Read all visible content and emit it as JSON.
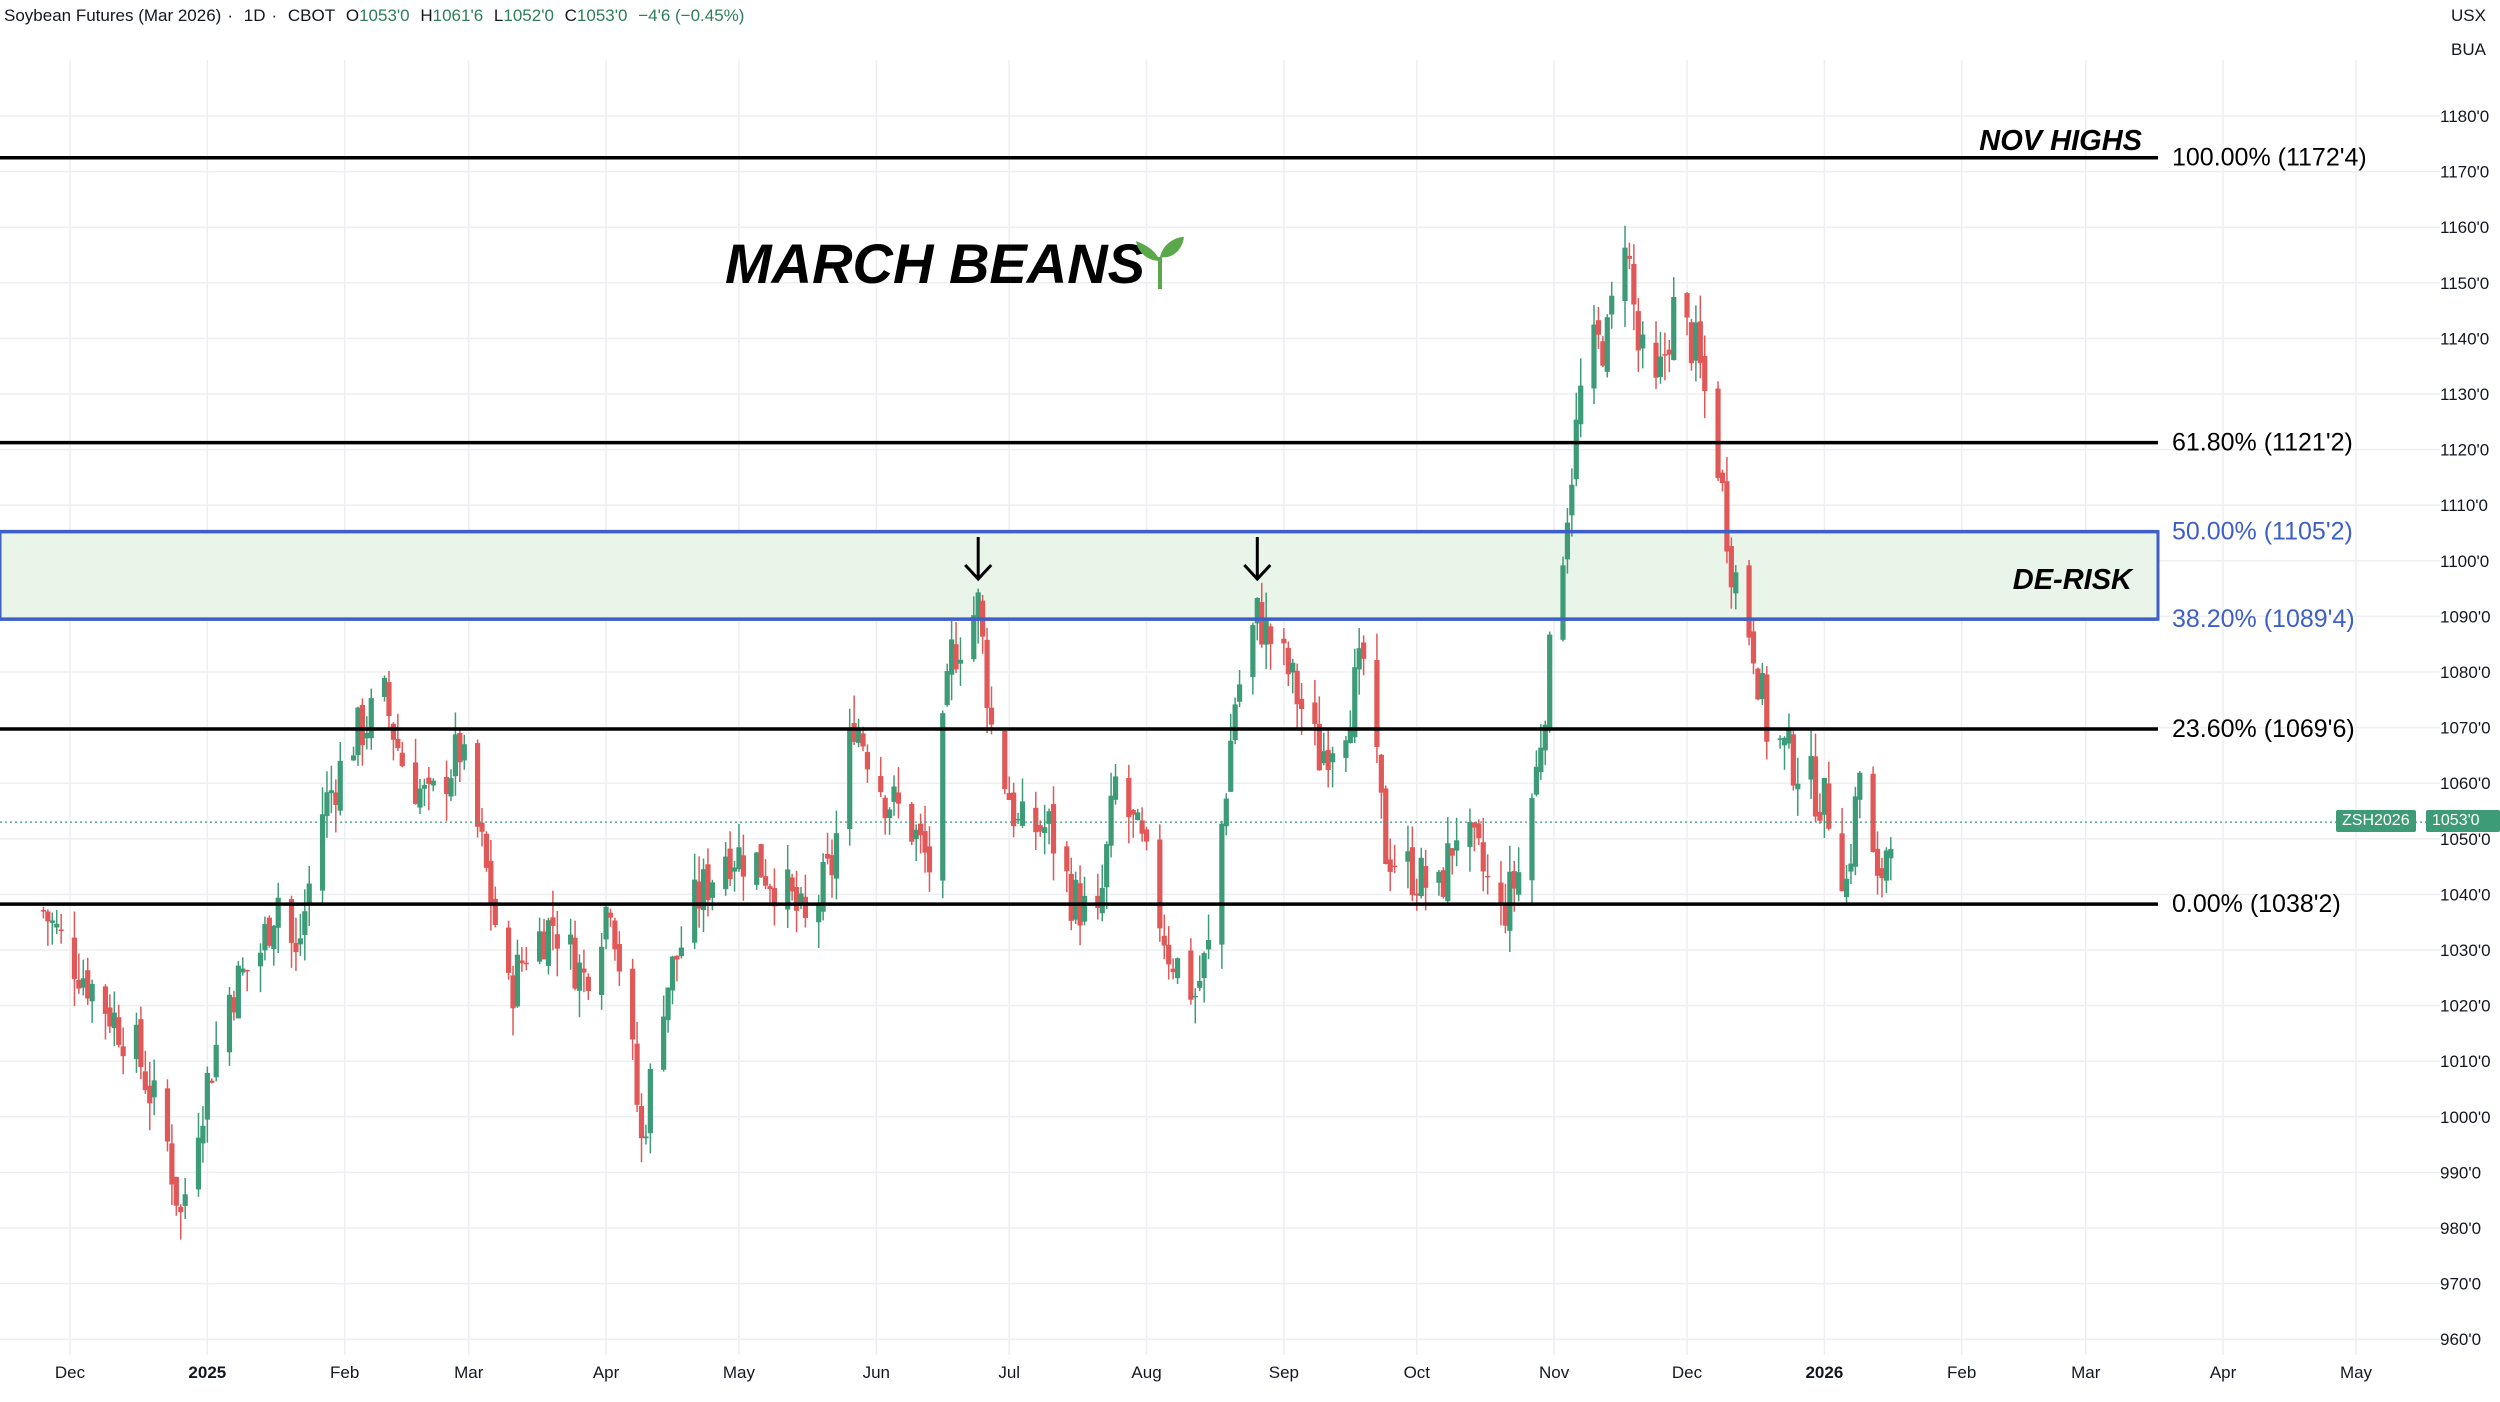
{
  "header": {
    "symbol": "Soybean Futures (Mar 2026)",
    "interval": "1D",
    "exchange": "CBOT",
    "open_label": "O",
    "open": "1053'0",
    "high_label": "H",
    "high": "1061'6",
    "low_label": "L",
    "low": "1052'0",
    "close_label": "C",
    "close": "1053'0",
    "change": "−4'6 (−0.45%)"
  },
  "units": {
    "currency": "USX",
    "unit": "BUA"
  },
  "price_tag": {
    "ticker": "ZSH2026",
    "price": "1053'0"
  },
  "annotations": {
    "title": "MARCH BEANS",
    "nov_highs": "NOV HIGHS",
    "de_risk": "DE-RISK"
  },
  "colors": {
    "up": "#3d9b78",
    "down": "#e05858",
    "fib_line": "#000000",
    "zone_border": "#3e5fc7",
    "zone_fill": "#eaf5ea",
    "zone_label": "#3e5fc7",
    "grid": "#eeeff2",
    "sprout": "#5aa84a"
  },
  "chart_data": {
    "type": "candlestick",
    "title": "MARCH BEANS",
    "price_axis": {
      "labels": [
        "1180'0",
        "1170'0",
        "1160'0",
        "1150'0",
        "1140'0",
        "1130'0",
        "1120'0",
        "1110'0",
        "1100'0",
        "1090'0",
        "1080'0",
        "1070'0",
        "1060'0",
        "1050'0",
        "1040'0",
        "1030'0",
        "1020'0",
        "1010'0",
        "1000'0",
        "990'0",
        "980'0",
        "970'0",
        "960'0"
      ],
      "values": [
        1180,
        1170,
        1160,
        1150,
        1140,
        1130,
        1120,
        1110,
        1100,
        1090,
        1080,
        1070,
        1060,
        1050,
        1040,
        1030,
        1020,
        1010,
        1000,
        990,
        980,
        970,
        960
      ]
    },
    "time_axis": {
      "labels": [
        "Dec",
        "2025",
        "Feb",
        "Mar",
        "Apr",
        "May",
        "Jun",
        "Jul",
        "Aug",
        "Sep",
        "Oct",
        "Nov",
        "Dec",
        "2026",
        "Feb",
        "Mar",
        "Apr",
        "May"
      ],
      "bold": [
        "2025",
        "2026"
      ]
    },
    "last_price": 1053.0,
    "fib_levels": [
      {
        "label": "100.00% (1172'4)",
        "value": 1172.5,
        "style": "black"
      },
      {
        "label": "61.80% (1121'2)",
        "value": 1121.25,
        "style": "black"
      },
      {
        "label": "50.00% (1105'2)",
        "value": 1105.25,
        "style": "blue"
      },
      {
        "label": "38.20% (1089'4)",
        "value": 1089.5,
        "style": "blue"
      },
      {
        "label": "23.60% (1069'6)",
        "value": 1069.75,
        "style": "black"
      },
      {
        "label": "0.00% (1038'2)",
        "value": 1038.25,
        "style": "black"
      }
    ],
    "de_risk_zone": [
      1089.5,
      1105.25
    ],
    "arrow_markers": [
      "2025-06-24",
      "2025-08-26"
    ],
    "daily_close_path": [
      [
        "2024-11-25",
        1037
      ],
      [
        "2024-12-02",
        1028
      ],
      [
        "2024-12-09",
        1020
      ],
      [
        "2024-12-16",
        1012
      ],
      [
        "2024-12-23",
        995
      ],
      [
        "2024-12-26",
        982
      ],
      [
        "2024-12-30",
        1000
      ],
      [
        "2025-01-06",
        1022
      ],
      [
        "2025-01-13",
        1030
      ],
      [
        "2025-01-17",
        1040
      ],
      [
        "2025-01-21",
        1028
      ],
      [
        "2025-01-27",
        1055
      ],
      [
        "2025-02-03",
        1068
      ],
      [
        "2025-02-10",
        1075
      ],
      [
        "2025-02-14",
        1064
      ],
      [
        "2025-02-20",
        1056
      ],
      [
        "2025-02-27",
        1066
      ],
      [
        "2025-03-04",
        1048
      ],
      [
        "2025-03-10",
        1022
      ],
      [
        "2025-03-14",
        1030
      ],
      [
        "2025-03-20",
        1035
      ],
      [
        "2025-03-27",
        1025
      ],
      [
        "2025-04-02",
        1040
      ],
      [
        "2025-04-07",
        1010
      ],
      [
        "2025-04-09",
        995
      ],
      [
        "2025-04-14",
        1022
      ],
      [
        "2025-04-21",
        1038
      ],
      [
        "2025-04-28",
        1048
      ],
      [
        "2025-05-05",
        1046
      ],
      [
        "2025-05-12",
        1040
      ],
      [
        "2025-05-16",
        1034
      ],
      [
        "2025-05-22",
        1045
      ],
      [
        "2025-05-27",
        1072
      ],
      [
        "2025-06-03",
        1058
      ],
      [
        "2025-06-09",
        1052
      ],
      [
        "2025-06-13",
        1045
      ],
      [
        "2025-06-18",
        1083
      ],
      [
        "2025-06-24",
        1092
      ],
      [
        "2025-06-27",
        1070
      ],
      [
        "2025-07-03",
        1052
      ],
      [
        "2025-07-10",
        1052
      ],
      [
        "2025-07-15",
        1040
      ],
      [
        "2025-07-21",
        1034
      ],
      [
        "2025-07-25",
        1060
      ],
      [
        "2025-07-31",
        1048
      ],
      [
        "2025-08-06",
        1030
      ],
      [
        "2025-08-12",
        1022
      ],
      [
        "2025-08-15",
        1030
      ],
      [
        "2025-08-21",
        1075
      ],
      [
        "2025-08-26",
        1090
      ],
      [
        "2025-09-02",
        1080
      ],
      [
        "2025-09-09",
        1065
      ],
      [
        "2025-09-15",
        1072
      ],
      [
        "2025-09-19",
        1082
      ],
      [
        "2025-09-24",
        1048
      ],
      [
        "2025-09-30",
        1044
      ],
      [
        "2025-10-06",
        1040
      ],
      [
        "2025-10-10",
        1052
      ],
      [
        "2025-10-15",
        1046
      ],
      [
        "2025-10-20",
        1036
      ],
      [
        "2025-10-24",
        1044
      ],
      [
        "2025-10-28",
        1062
      ],
      [
        "2025-10-31",
        1082
      ],
      [
        "2025-11-04",
        1110
      ],
      [
        "2025-11-07",
        1130
      ],
      [
        "2025-11-10",
        1138
      ],
      [
        "2025-11-13",
        1140
      ],
      [
        "2025-11-17",
        1160
      ],
      [
        "2025-11-20",
        1138
      ],
      [
        "2025-11-24",
        1130
      ],
      [
        "2025-11-28",
        1145
      ],
      [
        "2025-12-03",
        1138
      ],
      [
        "2025-12-08",
        1118
      ],
      [
        "2025-12-11",
        1100
      ],
      [
        "2025-12-16",
        1085
      ],
      [
        "2025-12-19",
        1070
      ],
      [
        "2025-12-24",
        1065
      ],
      [
        "2025-12-29",
        1060
      ],
      [
        "2026-01-02",
        1055
      ],
      [
        "2026-01-06",
        1042
      ],
      [
        "2026-01-09",
        1062
      ],
      [
        "2026-01-13",
        1040
      ],
      [
        "2026-01-16",
        1053
      ]
    ]
  }
}
